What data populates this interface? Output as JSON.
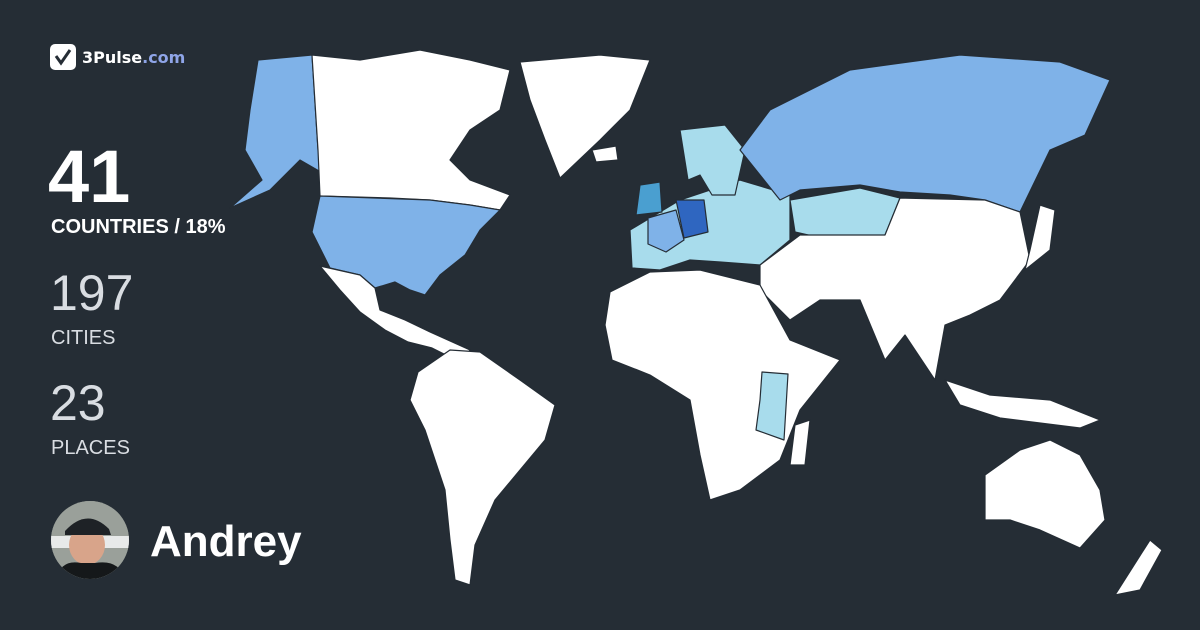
{
  "brand": {
    "name": "3Pulse",
    "domain": ".com"
  },
  "stats": {
    "countries_count": "41",
    "countries_label": "COUNTRIES / 18%",
    "cities_count": "197",
    "cities_label": "CITIES",
    "places_count": "23",
    "places_label": "PLACES"
  },
  "user": {
    "name": "Andrey"
  },
  "colors": {
    "background": "#252d35",
    "unvisited": "#ffffff",
    "visited": "#7fb2e8",
    "visited_light": "#a8dcec",
    "visited_medium": "#4a9fd0",
    "visited_dark": "#2f66c0"
  }
}
